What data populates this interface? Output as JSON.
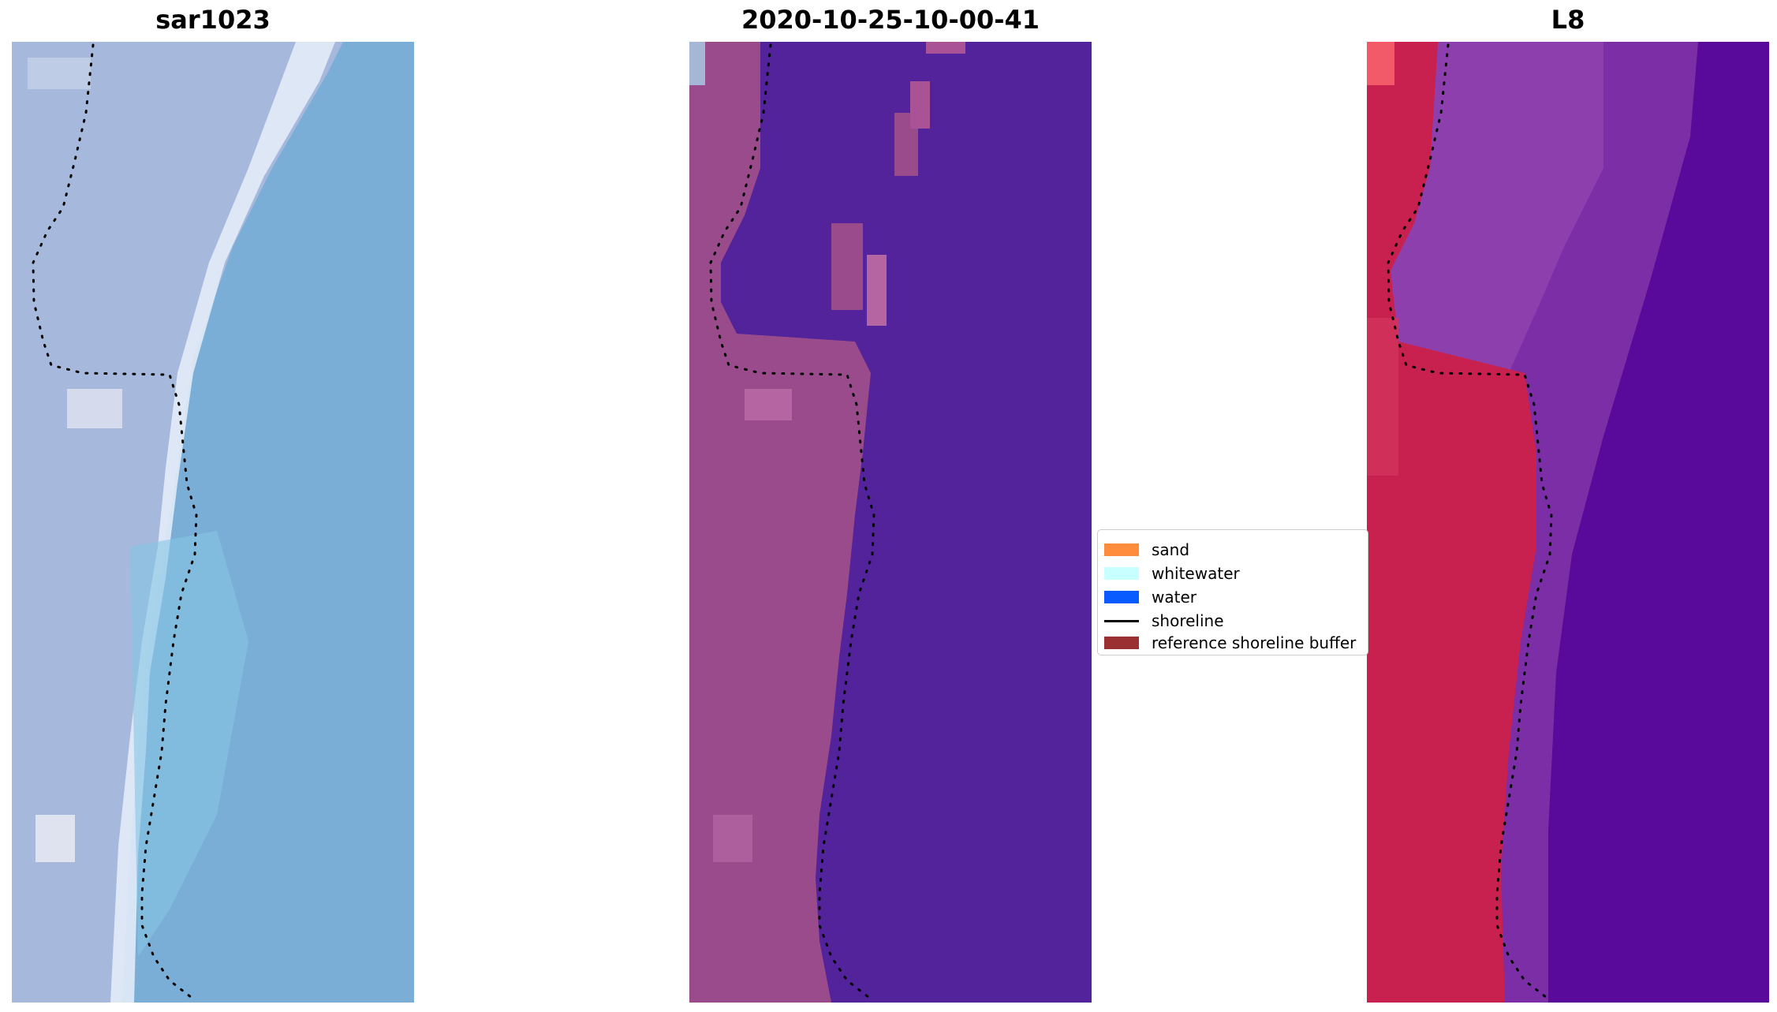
{
  "panels": [
    {
      "id": "sar",
      "title": "sar1023"
    },
    {
      "id": "classified",
      "title": "2020-10-25-10-00-41"
    },
    {
      "id": "l8",
      "title": "L8"
    }
  ],
  "legend": {
    "items": [
      {
        "label": "sand",
        "color": "#ff8c3c"
      },
      {
        "label": "whitewater",
        "color": "#c8ffff"
      },
      {
        "label": "water",
        "color": "#0a5bff"
      },
      {
        "label": "shoreline",
        "color": "#000000"
      },
      {
        "label": "reference shoreline buffer",
        "color": "#9b3033"
      }
    ]
  },
  "colors": {
    "sar_land": "#9fb4d8",
    "sar_water": "#7bb2d9",
    "classified_land": "#9a4b8c",
    "classified_water": "#52239a",
    "l8_land": "#c8204f",
    "l8_mid": "#8a3aaa",
    "l8_water": "#5a0a9a"
  }
}
